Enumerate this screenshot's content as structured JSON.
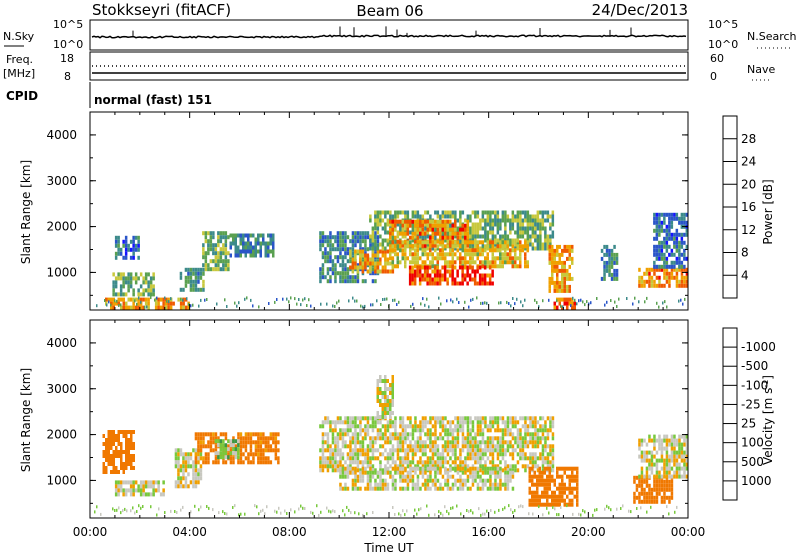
{
  "header": {
    "station": "Stokkseyri (fitACF)",
    "beam": "Beam 06",
    "date": "24/Dec/2013"
  },
  "top_panels": {
    "nsky_label": "N.Sky",
    "nsky_ticks": [
      "10^5",
      "10^0"
    ],
    "nsearch_label": "N.Search",
    "nsearch_ticks": [
      "10^5",
      "10^0"
    ],
    "freq_label": "Freq.",
    "freq_unit": "[MHz]",
    "freq_ticks": [
      "18",
      "8"
    ],
    "nave_label": "Nave",
    "nave_ticks": [
      "60",
      "0"
    ],
    "cpid_label": "CPID",
    "cpid_text": "normal (fast) 151"
  },
  "chart_data": [
    {
      "type": "heatmap",
      "name": "power",
      "ylabel": "Slant Range [km]",
      "xlabel": "Time UT",
      "xlim": [
        0,
        24
      ],
      "ylim": [
        180,
        4500
      ],
      "x_ticks": [
        "00:00",
        "04:00",
        "08:00",
        "12:00",
        "16:00",
        "20:00",
        "00:00"
      ],
      "y_ticks": [
        1000,
        2000,
        3000,
        4000
      ],
      "colorbar_label": "Power [dB]",
      "colorbar_ticks": [
        4,
        8,
        12,
        16,
        20,
        24,
        28
      ],
      "colorbar_colors": [
        "#1414ff",
        "#2a55c8",
        "#3c8a8a",
        "#5aa050",
        "#c8c83c",
        "#f0a000",
        "#f05a00",
        "#f00000"
      ],
      "regions": [
        {
          "t0": 0.6,
          "t1": 4.0,
          "r0": 250,
          "r1": 450,
          "value": 22
        },
        {
          "t0": 0.9,
          "t1": 2.6,
          "r0": 500,
          "r1": 1000,
          "value": 14
        },
        {
          "t0": 1.0,
          "t1": 2.0,
          "r0": 1300,
          "r1": 1800,
          "value": 8
        },
        {
          "t0": 3.6,
          "t1": 4.6,
          "r0": 600,
          "r1": 1100,
          "value": 12
        },
        {
          "t0": 4.5,
          "t1": 5.6,
          "r0": 1050,
          "r1": 1900,
          "value": 14
        },
        {
          "t0": 5.6,
          "t1": 7.4,
          "r0": 1350,
          "r1": 1850,
          "value": 10
        },
        {
          "t0": 9.2,
          "t1": 11.6,
          "r0": 800,
          "r1": 1900,
          "value": 10
        },
        {
          "t0": 10.4,
          "t1": 12.2,
          "r0": 1050,
          "r1": 1500,
          "value": 22
        },
        {
          "t0": 11.2,
          "t1": 18.6,
          "r0": 1500,
          "r1": 2350,
          "value": 14
        },
        {
          "t0": 12.0,
          "t1": 15.2,
          "r0": 1600,
          "r1": 2150,
          "value": 24
        },
        {
          "t0": 12.0,
          "t1": 17.6,
          "r0": 1150,
          "r1": 1700,
          "value": 20
        },
        {
          "t0": 12.8,
          "t1": 16.2,
          "r0": 750,
          "r1": 1150,
          "value": 28
        },
        {
          "t0": 18.4,
          "t1": 19.4,
          "r0": 600,
          "r1": 1600,
          "value": 22
        },
        {
          "t0": 18.6,
          "t1": 19.6,
          "r0": 250,
          "r1": 450,
          "value": 26
        },
        {
          "t0": 20.5,
          "t1": 21.2,
          "r0": 900,
          "r1": 1600,
          "value": 10
        },
        {
          "t0": 22.0,
          "t1": 24.0,
          "r0": 700,
          "r1": 1100,
          "value": 24
        },
        {
          "t0": 22.6,
          "t1": 24.0,
          "r0": 1100,
          "r1": 2300,
          "value": 8
        }
      ]
    },
    {
      "type": "heatmap",
      "name": "velocity",
      "ylabel": "Slant Range [km]",
      "xlabel": "Time UT",
      "xlim": [
        0,
        24
      ],
      "ylim": [
        180,
        4500
      ],
      "x_ticks": [
        "00:00",
        "04:00",
        "08:00",
        "12:00",
        "16:00",
        "20:00",
        "00:00"
      ],
      "y_ticks": [
        1000,
        2000,
        3000,
        4000
      ],
      "colorbar_label": "Velocity [m s^-1]",
      "colorbar_ticks": [
        "1000",
        "500",
        "100",
        "25",
        "-25",
        "-100",
        "-500",
        "-1000"
      ],
      "colorbar_colors": [
        "#1e3cc8",
        "#2d6e5a",
        "#3c9646",
        "#78c83c",
        "#c8c8c0",
        "#f0a000",
        "#f07800",
        "#f03c00",
        "#f00000"
      ],
      "regions": [
        {
          "t0": 0.5,
          "t1": 1.8,
          "r0": 1200,
          "r1": 2100,
          "value": -200
        },
        {
          "t0": 1.0,
          "t1": 3.0,
          "r0": 700,
          "r1": 1000,
          "value": 0
        },
        {
          "t0": 3.4,
          "t1": 4.5,
          "r0": 900,
          "r1": 1700,
          "value": 0
        },
        {
          "t0": 4.2,
          "t1": 7.6,
          "r0": 1400,
          "r1": 2050,
          "value": -150
        },
        {
          "t0": 5.0,
          "t1": 6.0,
          "r0": 1500,
          "r1": 1900,
          "value": 60
        },
        {
          "t0": 9.2,
          "t1": 18.6,
          "r0": 1200,
          "r1": 2400,
          "value": 0
        },
        {
          "t0": 10.0,
          "t1": 17.0,
          "r0": 800,
          "r1": 1300,
          "value": 0
        },
        {
          "t0": 11.5,
          "t1": 12.2,
          "r0": 2400,
          "r1": 3300,
          "value": 0
        },
        {
          "t0": 17.6,
          "t1": 19.6,
          "r0": 500,
          "r1": 1300,
          "value": -300
        },
        {
          "t0": 21.8,
          "t1": 23.4,
          "r0": 500,
          "r1": 1100,
          "value": -200
        },
        {
          "t0": 22.0,
          "t1": 24.0,
          "r0": 1100,
          "r1": 2000,
          "value": 0
        }
      ]
    }
  ]
}
